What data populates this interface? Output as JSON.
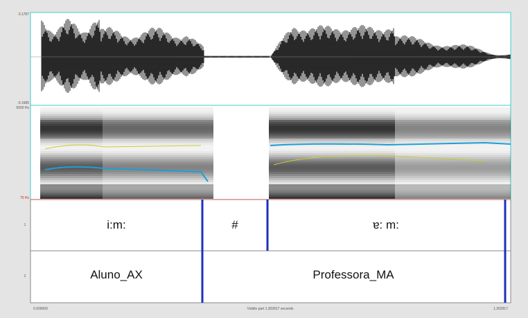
{
  "waveform": {
    "max_label": "0.1787",
    "min_label": "-0.1685"
  },
  "spectrogram": {
    "top_label": "5000 Hz",
    "bottom_label": "75 Hz"
  },
  "tiers": [
    {
      "number": "1",
      "intervals": [
        "i:m:",
        "#",
        "ɐ: m:"
      ]
    },
    {
      "number": "2",
      "intervals": [
        "Aluno_AX",
        "Professora_MA"
      ]
    }
  ],
  "footer": {
    "start": "0.000000",
    "visible": "Visible part 1.302817 seconds",
    "end": "1.302817"
  }
}
